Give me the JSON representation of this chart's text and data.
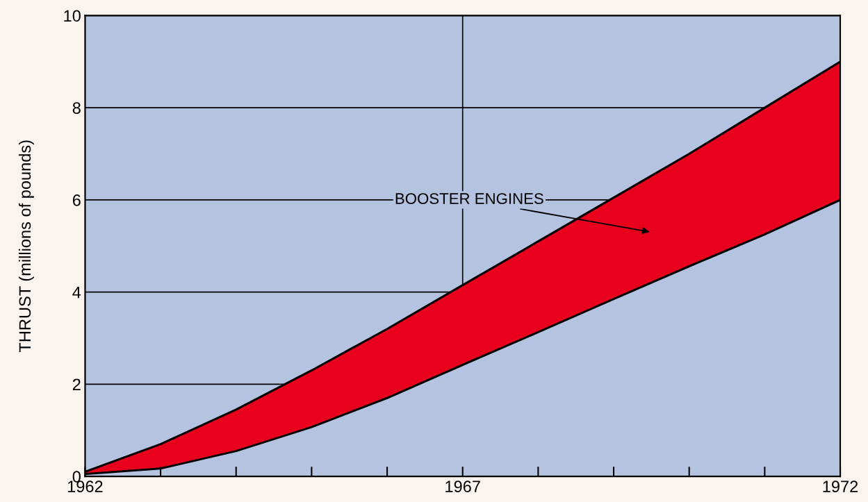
{
  "chart_data": {
    "type": "area",
    "stacked": true,
    "ylabel": "THRUST (millions of pounds)",
    "x": [
      1962,
      1963,
      1964,
      1965,
      1966,
      1967,
      1968,
      1969,
      1970,
      1971,
      1972
    ],
    "series": [
      {
        "color": "#b4c3df",
        "values": [
          0.05,
          0.17,
          0.55,
          1.07,
          1.7,
          2.42,
          3.13,
          3.85,
          4.56,
          5.25,
          6.0
        ]
      },
      {
        "color": "#e8001c",
        "values": [
          0.05,
          0.53,
          0.9,
          1.23,
          1.5,
          1.73,
          1.97,
          2.2,
          2.44,
          2.75,
          3.0
        ]
      }
    ],
    "xlim": [
      1962,
      1972
    ],
    "ylim": [
      0,
      10
    ],
    "xticks": [
      1962,
      {
        "value": 1963,
        "label": null
      },
      {
        "value": 1964,
        "label": null
      },
      {
        "value": 1965,
        "label": null
      },
      {
        "value": 1966,
        "label": null
      },
      1967,
      {
        "value": 1968,
        "label": null
      },
      {
        "value": 1969,
        "label": null
      },
      {
        "value": 1970,
        "label": null
      },
      {
        "value": 1971,
        "label": null
      },
      1972
    ],
    "yticks": [
      0,
      2,
      4,
      6,
      8,
      10
    ],
    "grid": true,
    "annotations": [
      "BOOSTER ENGINES"
    ]
  }
}
